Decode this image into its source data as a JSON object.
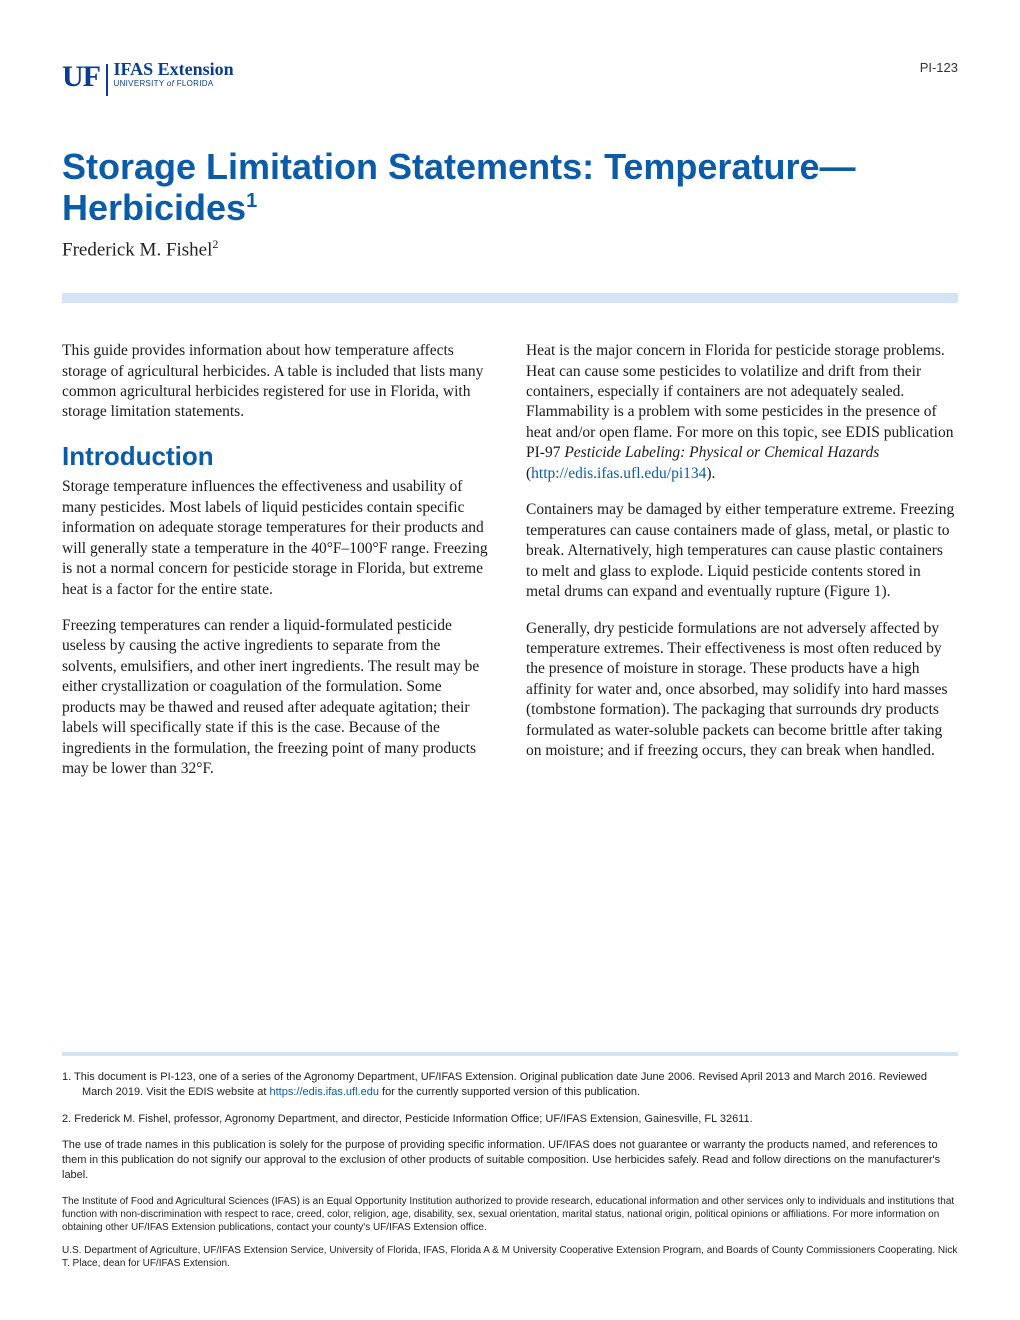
{
  "header": {
    "logo_uf": "UF",
    "logo_main": "IFAS Extension",
    "logo_univ_prefix": "UNIVERSITY ",
    "logo_univ_of": "of",
    "logo_univ_suffix": " FLORIDA",
    "doc_id": "PI-123"
  },
  "title": "Storage Limitation Statements: Temperature—Herbicides",
  "title_sup": "1",
  "author": "Frederick M. Fishel",
  "author_sup": "2",
  "colors": {
    "brand_blue": "#0a5ca8",
    "uf_blue": "#0a3d91",
    "light_blue": "#d4e4f5",
    "text": "#1a1a1a"
  },
  "left_col": {
    "p1": "This guide provides information about how temperature affects storage of agricultural herbicides. A table is included that lists many common agricultural herbicides registered for use in Florida, with storage limitation statements.",
    "h1": "Introduction",
    "p2": "Storage temperature influences the effectiveness and usability of many pesticides. Most labels of liquid pesticides contain specific information on adequate storage temperatures for their products and will generally state a temperature in the 40°F–100°F range. Freezing is not a normal concern for pesticide storage in Florida, but extreme heat is a factor for the entire state.",
    "p3": "Freezing temperatures can render a liquid-formulated pesticide useless by causing the active ingredients to separate from the solvents, emulsifiers, and other inert ingredients. The result may be either crystallization or coagulation of the formulation. Some products may be thawed and reused after adequate agitation; their labels will specifically state if this is the case. Because of the ingredients in the formulation, the freezing point of many products may be lower than 32°F."
  },
  "right_col": {
    "p1_pre": "Heat is the major concern in Florida for pesticide storage problems. Heat can cause some pesticides to volatilize and drift from their containers, especially if containers are not adequately sealed. Flammability is a problem with some pesticides in the presence of heat and/or open flame. For more on this topic, see EDIS publication PI-97 ",
    "p1_em": "Pesticide Labeling: Physical or Chemical Hazards",
    "p1_mid": " (",
    "p1_link": "http://edis.ifas.ufl.edu/pi134",
    "p1_post": ").",
    "p2": "Containers may be damaged by either temperature extreme. Freezing temperatures can cause containers made of glass, metal, or plastic to break. Alternatively, high temperatures can cause plastic containers to melt and glass to explode. Liquid pesticide contents stored in metal drums can expand and eventually rupture (Figure 1).",
    "p3": "Generally, dry pesticide formulations are not adversely affected by temperature extremes. Their effectiveness is most often reduced by the presence of moisture in storage. These products have a high affinity for water and, once absorbed, may solidify into hard masses (tombstone formation). The packaging that surrounds dry products formulated as water-soluble packets can become brittle after taking on moisture; and if freezing occurs, they can break when handled."
  },
  "footnotes": {
    "f1_pre": "1.   This document is PI-123, one of a series of the Agronomy Department, UF/IFAS Extension. Original publication date June 2006. Revised April 2013 and March 2016. Reviewed March 2019. Visit the EDIS website at ",
    "f1_link": "https://edis.ifas.ufl.edu",
    "f1_post": " for the currently supported version of this publication.",
    "f2": "2.   Frederick M. Fishel, professor, Agronomy Department, and director, Pesticide Information Office; UF/IFAS Extension, Gainesville, FL 32611."
  },
  "disclaimers": {
    "d1": "The use of trade names in this publication is solely for the purpose of providing specific information. UF/IFAS does not guarantee or warranty the products named, and references to them in this publication do not signify our approval to the exclusion of other products of suitable composition. Use herbicides safely. Read and follow directions on the manufacturer's label.",
    "d2": "The Institute of Food and Agricultural Sciences (IFAS) is an Equal Opportunity Institution authorized to provide research, educational information and other services only to individuals and institutions that function with non-discrimination with respect to race, creed, color, religion, age, disability, sex, sexual orientation, marital status, national origin, political opinions or affiliations. For more information on obtaining other UF/IFAS Extension publications, contact your county's UF/IFAS Extension office.",
    "d3": "U.S. Department of Agriculture, UF/IFAS Extension Service, University of Florida, IFAS, Florida A & M University Cooperative Extension Program, and Boards of County Commissioners Cooperating. Nick T. Place, dean for UF/IFAS Extension."
  }
}
